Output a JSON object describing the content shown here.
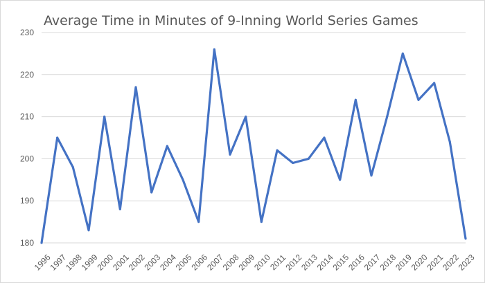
{
  "chart_data": {
    "type": "line",
    "title": "Average Time in Minutes of 9-Inning World Series Games",
    "xlabel": "",
    "ylabel": "",
    "categories": [
      "1996",
      "1997",
      "1998",
      "1999",
      "2000",
      "2001",
      "2002",
      "2003",
      "2004",
      "2005",
      "2006",
      "2007",
      "2008",
      "2009",
      "2010",
      "2011",
      "2012",
      "2013",
      "2014",
      "2015",
      "2016",
      "2017",
      "2018",
      "2019",
      "2020",
      "2021",
      "2022",
      "2023"
    ],
    "series": [
      {
        "values": [
          180,
          205,
          198,
          183,
          210,
          188,
          217,
          192,
          203,
          195,
          185,
          226,
          201,
          210,
          185,
          202,
          199,
          200,
          205,
          195,
          214,
          196,
          210,
          225,
          214,
          218,
          204,
          181
        ]
      }
    ],
    "ylim": [
      180,
      230
    ],
    "yticks": [
      180,
      190,
      200,
      210,
      220,
      230
    ],
    "grid": true,
    "legend": "none",
    "line_color": "#4472c4"
  }
}
